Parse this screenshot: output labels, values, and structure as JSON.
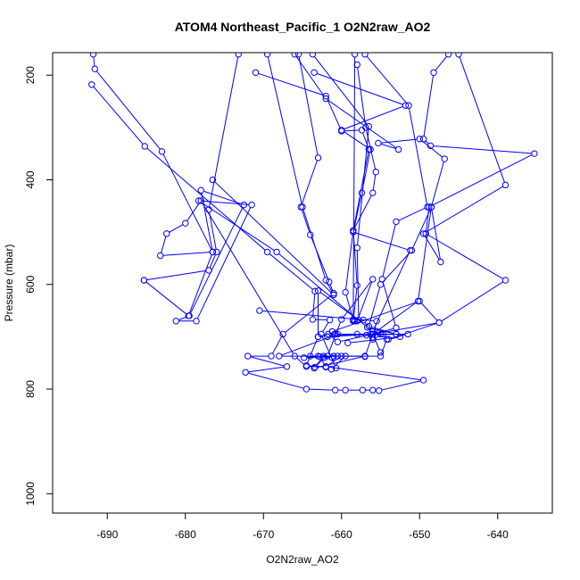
{
  "chart_data": {
    "type": "line",
    "title": "ATOM4 Northeast_Pacific_1 O2N2raw_AO2",
    "xlabel": "O2N2raw_AO2",
    "ylabel": "Pressure (mbar)",
    "xlim": [
      -697,
      -633
    ],
    "ylim": [
      1037,
      157
    ],
    "y_inverted": true,
    "x_ticks": [
      -690,
      -680,
      -670,
      -660,
      -650,
      -640
    ],
    "y_ticks": [
      200,
      400,
      600,
      800,
      1000
    ],
    "grid": false,
    "legend": "none",
    "series_color": "#0000ff",
    "marker": "open-circle",
    "series": [
      {
        "values": [
          [
            -691.8,
            160
          ],
          [
            -691.6,
            188
          ],
          [
            -683.0,
            346
          ],
          [
            -676.5,
            538
          ],
          [
            -678.0,
            420
          ],
          [
            -672.5,
            448
          ],
          [
            -679.5,
            660
          ],
          [
            -681.2,
            670
          ],
          [
            -678.6,
            670
          ],
          [
            -671.5,
            448
          ],
          [
            -678.3,
            440
          ],
          [
            -668.3,
            538
          ],
          [
            -656.7,
            682
          ],
          [
            -653.0,
            695
          ],
          [
            -655.0,
            695
          ],
          [
            -660.5,
            695
          ],
          [
            -668.0,
            737
          ],
          [
            -661.0,
            737
          ],
          [
            -663.0,
            737
          ],
          [
            -664.8,
            740
          ],
          [
            -660.5,
            737
          ]
        ]
      },
      {
        "values": [
          [
            -692.0,
            218
          ],
          [
            -685.2,
            336
          ],
          [
            -669.5,
            538
          ],
          [
            -663.4,
            613
          ],
          [
            -663.7,
            667
          ],
          [
            -661.5,
            668
          ],
          [
            -662.6,
            695
          ],
          [
            -660.7,
            760
          ],
          [
            -661.3,
            762
          ],
          [
            -659.5,
            737
          ],
          [
            -664.0,
            737
          ],
          [
            -655.0,
            737
          ],
          [
            -654.2,
            705
          ],
          [
            -651.5,
            695
          ],
          [
            -656.3,
            695
          ],
          [
            -660.9,
            695
          ]
        ]
      },
      {
        "values": [
          [
            -676.5,
            400
          ],
          [
            -661.0,
            620
          ],
          [
            -662.0,
            592
          ],
          [
            -665.0,
            452
          ],
          [
            -669.5,
            160
          ]
        ]
      },
      {
        "values": [
          [
            -685.3,
            592
          ],
          [
            -679.6,
            660
          ],
          [
            -676.5,
            538
          ],
          [
            -683.2,
            545
          ],
          [
            -682.4,
            503
          ],
          [
            -680.0,
            483
          ],
          [
            -678.0,
            440
          ],
          [
            -666.0,
            737
          ],
          [
            -664.5,
            757
          ],
          [
            -662.0,
            757
          ],
          [
            -660.0,
            737
          ],
          [
            -657.0,
            737
          ],
          [
            -663.5,
            760
          ]
        ]
      },
      {
        "values": [
          [
            -685.3,
            592
          ],
          [
            -677.0,
            573
          ],
          [
            -676.0,
            538
          ],
          [
            -677.0,
            457
          ],
          [
            -673.2,
            160
          ]
        ]
      },
      {
        "values": [
          [
            -671.0,
            195
          ],
          [
            -662.0,
            240
          ],
          [
            -660.0,
            307
          ],
          [
            -657.4,
            305
          ],
          [
            -656.5,
            342
          ],
          [
            -658.5,
            497
          ],
          [
            -659.5,
            615
          ],
          [
            -658.5,
            668
          ],
          [
            -658.0,
            670
          ],
          [
            -656.0,
            590
          ],
          [
            -660.0,
            667
          ],
          [
            -661.8,
            737
          ],
          [
            -662.2,
            740
          ],
          [
            -663.4,
            758
          ],
          [
            -662.3,
            737
          ]
        ]
      },
      {
        "values": [
          [
            -663.7,
            160
          ],
          [
            -656.5,
            298
          ],
          [
            -658.0,
            530
          ],
          [
            -657.8,
            668
          ],
          [
            -663.0,
            612
          ],
          [
            -663.0,
            700
          ],
          [
            -664.5,
            755
          ],
          [
            -662.0,
            758
          ],
          [
            -662.8,
            738
          ],
          [
            -661.2,
            740
          ]
        ]
      },
      {
        "values": [
          [
            -658.3,
            160
          ],
          [
            -658.5,
            667
          ],
          [
            -657.2,
            668
          ],
          [
            -656.0,
            695
          ]
        ]
      },
      {
        "values": [
          [
            -665.5,
            160
          ],
          [
            -663.0,
            358
          ],
          [
            -665.2,
            452
          ],
          [
            -664.0,
            505
          ],
          [
            -661.6,
            595
          ],
          [
            -661.0,
            617
          ],
          [
            -667.5,
            695
          ],
          [
            -669.0,
            737
          ],
          [
            -672.0,
            737
          ],
          [
            -667.0,
            757
          ],
          [
            -672.3,
            768
          ],
          [
            -664.5,
            800
          ],
          [
            -660.8,
            802
          ],
          [
            -659.5,
            802
          ],
          [
            -657.3,
            802
          ],
          [
            -656.0,
            802
          ],
          [
            -655.2,
            803
          ],
          [
            -649.5,
            783
          ],
          [
            -662.0,
            757
          ]
        ]
      },
      {
        "values": [
          [
            -658.0,
            180
          ],
          [
            -656.9,
            300
          ],
          [
            -655.6,
            385
          ],
          [
            -656.0,
            425
          ],
          [
            -658.5,
            497
          ],
          [
            -658.0,
            602
          ],
          [
            -658.5,
            670
          ],
          [
            -658.3,
            670
          ]
        ]
      },
      {
        "values": [
          [
            -663.5,
            195
          ],
          [
            -651.8,
            258
          ],
          [
            -660.0,
            305
          ],
          [
            -656.3,
            342
          ],
          [
            -657.4,
            425
          ],
          [
            -658.5,
            500
          ],
          [
            -651.2,
            535
          ],
          [
            -656.0,
            690
          ],
          [
            -654.7,
            695
          ],
          [
            -656.0,
            705
          ]
        ]
      },
      {
        "values": [
          [
            -666.0,
            160
          ],
          [
            -662.0,
            245
          ],
          [
            -652.7,
            342
          ],
          [
            -655.3,
            330
          ],
          [
            -650.0,
            322
          ],
          [
            -646.8,
            360
          ],
          [
            -648.5,
            452
          ],
          [
            -650.2,
            632
          ],
          [
            -656.0,
            695
          ],
          [
            -658.0,
            695
          ],
          [
            -661.8,
            700
          ]
        ]
      },
      {
        "values": [
          [
            -657.0,
            160
          ],
          [
            -651.4,
            258
          ],
          [
            -649.0,
            452
          ],
          [
            -653.0,
            480
          ],
          [
            -654.8,
            590
          ],
          [
            -653.0,
            683
          ],
          [
            -656.0,
            695
          ],
          [
            -660.5,
            710
          ],
          [
            -661.7,
            695
          ],
          [
            -663.0,
            700
          ]
        ]
      },
      {
        "values": [
          [
            -646.3,
            160
          ],
          [
            -648.2,
            195
          ],
          [
            -649.5,
            322
          ],
          [
            -648.6,
            335
          ],
          [
            -635.3,
            350
          ],
          [
            -648.8,
            452
          ],
          [
            -649.2,
            503
          ],
          [
            -639.0,
            592
          ],
          [
            -647.5,
            673
          ],
          [
            -654.0,
            705
          ],
          [
            -652.5,
            700
          ],
          [
            -659.2,
            712
          ]
        ]
      },
      {
        "values": [
          [
            -645.0,
            160
          ],
          [
            -639.0,
            410
          ],
          [
            -649.5,
            503
          ],
          [
            -647.3,
            557
          ],
          [
            -648.5,
            452
          ],
          [
            -651.0,
            535
          ],
          [
            -655.0,
            600
          ],
          [
            -656.5,
            680
          ],
          [
            -653.0,
            695
          ],
          [
            -656.8,
            697
          ],
          [
            -660.8,
            695
          ]
        ]
      },
      {
        "values": [
          [
            -661.2,
            690
          ],
          [
            -650.0,
            632
          ],
          [
            -647.5,
            673
          ],
          [
            -656.0,
            695
          ],
          [
            -661.8,
            700
          ]
        ]
      },
      {
        "values": [
          [
            -655.0,
            730
          ],
          [
            -656.0,
            695
          ],
          [
            -657.0,
            738
          ]
        ]
      },
      {
        "values": [
          [
            -670.5,
            650
          ],
          [
            -655.5,
            670
          ],
          [
            -656.0,
            702
          ]
        ]
      }
    ]
  }
}
